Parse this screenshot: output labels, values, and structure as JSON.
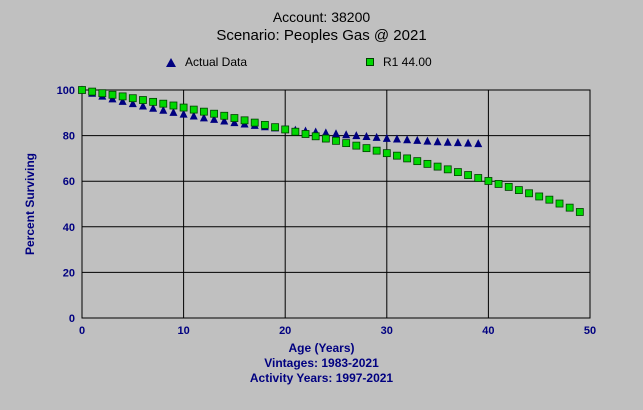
{
  "title": {
    "line1": "Account: 38200",
    "line2": "Scenario: Peoples Gas @ 2021"
  },
  "legend": {
    "items": [
      {
        "label": "Actual Data",
        "marker": "triangle",
        "color": "#000080"
      },
      {
        "label": "R1 44.00",
        "marker": "square",
        "color": "#00d800"
      }
    ]
  },
  "footer": {
    "xlabel": "Age (Years)",
    "vintages": "Vintages: 1983-2021",
    "activity_years": "Activity Years: 1997-2021"
  },
  "colors": {
    "background": "#c0c0c0",
    "grid": "#000000",
    "axis_text": "#000080",
    "title_text": "#000000",
    "actual_series": "#000080",
    "fitted_series": "#00d800"
  },
  "chart_data": {
    "type": "scatter",
    "title": "Account: 38200 — Scenario: Peoples Gas @ 2021",
    "xlabel": "Age (Years)",
    "ylabel": "Percent Surviving",
    "xlim": [
      0,
      50
    ],
    "ylim": [
      0,
      100
    ],
    "x_ticks": [
      0,
      10,
      20,
      30,
      40,
      50
    ],
    "y_ticks": [
      0,
      20,
      40,
      60,
      80,
      100
    ],
    "grid": true,
    "legend_position": "top",
    "series": [
      {
        "name": "Actual Data",
        "marker": "triangle",
        "color": "#000080",
        "x": [
          0,
          1,
          2,
          3,
          4,
          5,
          6,
          7,
          8,
          9,
          10,
          11,
          12,
          13,
          14,
          15,
          16,
          17,
          18,
          19,
          20,
          21,
          22,
          23,
          24,
          25,
          26,
          27,
          28,
          29,
          30,
          31,
          32,
          33,
          34,
          35,
          36,
          37,
          38,
          39
        ],
        "y": [
          100,
          98.6,
          97.3,
          96.1,
          95,
          94,
          93,
          92,
          91.1,
          90.2,
          89.4,
          88.6,
          87.8,
          87.1,
          86.4,
          85.7,
          85.1,
          84.5,
          83.9,
          83.4,
          82.9,
          82.4,
          82,
          81.6,
          81.2,
          80.8,
          80.4,
          80,
          79.6,
          79.2,
          78.8,
          78.5,
          78.2,
          77.9,
          77.6,
          77.3,
          77.1,
          76.9,
          76.7,
          76.5
        ]
      },
      {
        "name": "R1 44.00",
        "marker": "square",
        "color": "#00d800",
        "x": [
          0,
          1,
          2,
          3,
          4,
          5,
          6,
          7,
          8,
          9,
          10,
          11,
          12,
          13,
          14,
          15,
          16,
          17,
          18,
          19,
          20,
          21,
          22,
          23,
          24,
          25,
          26,
          27,
          28,
          29,
          30,
          31,
          32,
          33,
          34,
          35,
          36,
          37,
          38,
          39,
          40,
          41,
          42,
          43,
          44,
          45,
          46,
          47,
          48,
          49
        ],
        "y": [
          100,
          99.3,
          98.6,
          97.9,
          97.2,
          96.4,
          95.6,
          94.8,
          94,
          93.2,
          92.3,
          91.4,
          90.5,
          89.6,
          88.7,
          87.7,
          86.7,
          85.7,
          84.7,
          83.7,
          82.7,
          81.7,
          80.7,
          79.7,
          78.7,
          77.7,
          76.7,
          75.6,
          74.5,
          73.4,
          72.3,
          71.2,
          70,
          68.8,
          67.6,
          66.4,
          65.2,
          64,
          62.7,
          61.4,
          60.1,
          58.8,
          57.5,
          56.1,
          54.7,
          53.3,
          51.9,
          50.2,
          48.4,
          46.5
        ]
      }
    ]
  }
}
